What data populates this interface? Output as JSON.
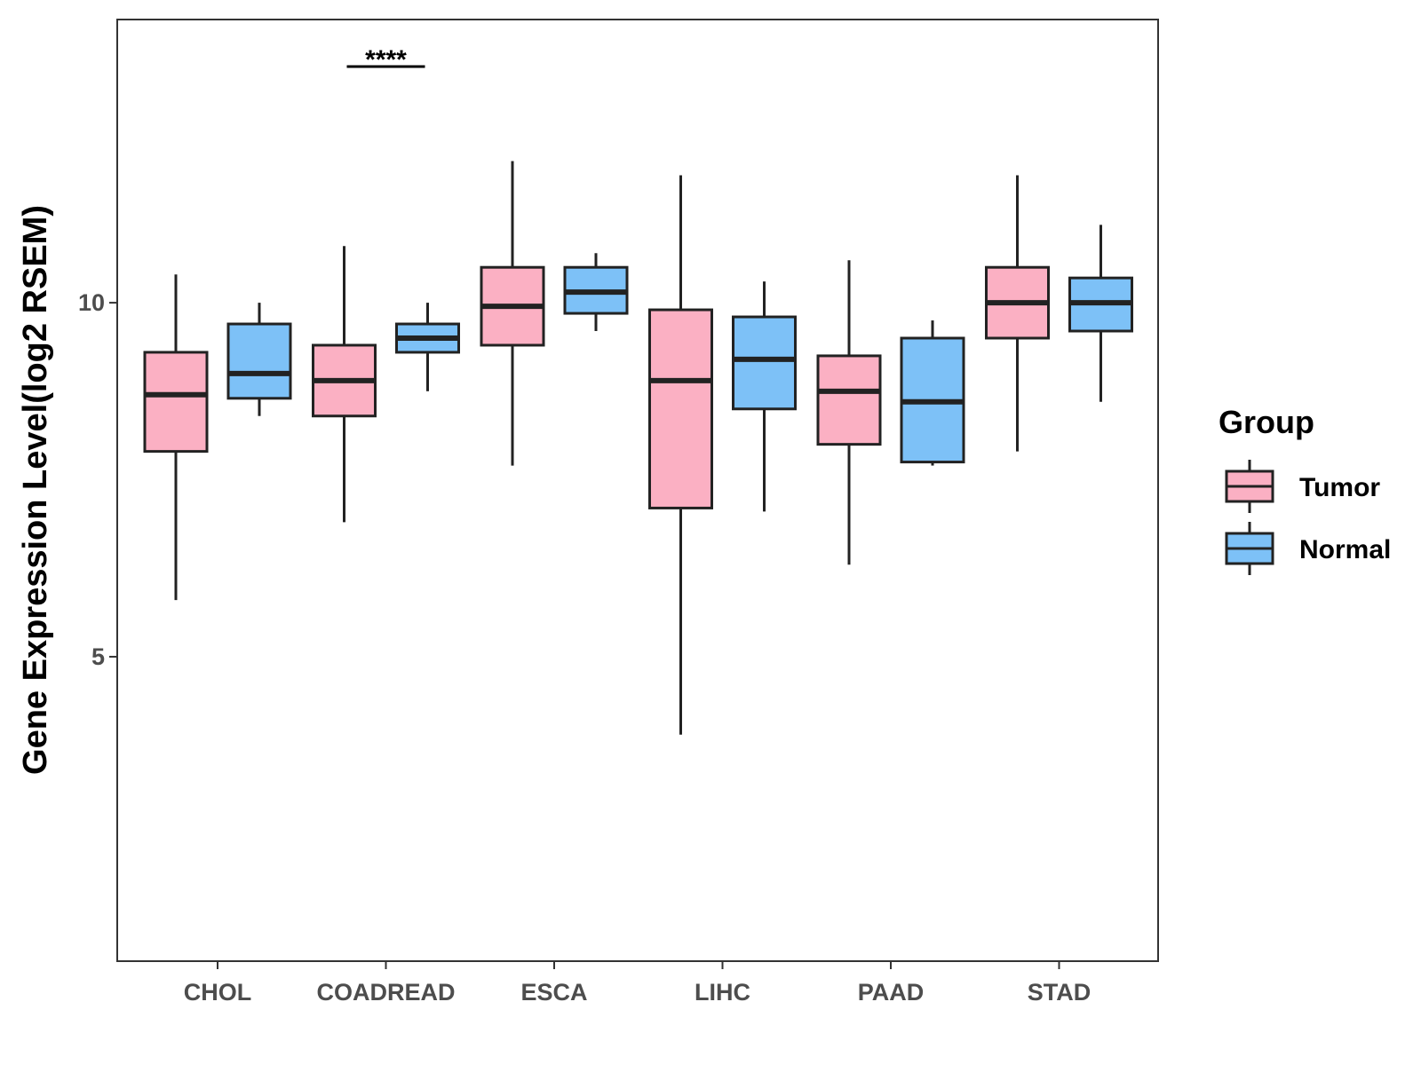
{
  "chart_data": {
    "type": "boxplot",
    "title": "",
    "xlabel": "",
    "ylabel": "Gene Expression Level(log2 RSEM)",
    "ylim": [
      0.7,
      14.0
    ],
    "yticks": [
      5,
      10
    ],
    "categories": [
      "CHOL",
      "COADREAD",
      "ESCA",
      "LIHC",
      "PAAD",
      "STAD"
    ],
    "series": [
      {
        "name": "Tumor",
        "color": "#FBB0C3",
        "boxes": [
          {
            "min": 5.8,
            "q1": 7.9,
            "median": 8.7,
            "q3": 9.3,
            "max": 10.4
          },
          {
            "min": 6.9,
            "q1": 8.4,
            "median": 8.9,
            "q3": 9.4,
            "max": 10.8
          },
          {
            "min": 7.7,
            "q1": 9.4,
            "median": 9.95,
            "q3": 10.5,
            "max": 12.0
          },
          {
            "min": 3.9,
            "q1": 7.1,
            "median": 8.9,
            "q3": 9.9,
            "max": 11.8
          },
          {
            "min": 6.3,
            "q1": 8.0,
            "median": 8.75,
            "q3": 9.25,
            "max": 10.6
          },
          {
            "min": 7.9,
            "q1": 9.5,
            "median": 10.0,
            "q3": 10.5,
            "max": 11.8
          }
        ]
      },
      {
        "name": "Normal",
        "color": "#7DC1F7",
        "boxes": [
          {
            "min": 8.4,
            "q1": 8.65,
            "median": 9.0,
            "q3": 9.7,
            "max": 10.0
          },
          {
            "min": 8.75,
            "q1": 9.3,
            "median": 9.5,
            "q3": 9.7,
            "max": 10.0
          },
          {
            "min": 9.6,
            "q1": 9.85,
            "median": 10.15,
            "q3": 10.5,
            "max": 10.7
          },
          {
            "min": 7.05,
            "q1": 8.5,
            "median": 9.2,
            "q3": 9.8,
            "max": 10.3
          },
          {
            "min": 7.7,
            "q1": 7.75,
            "median": 8.6,
            "q3": 9.5,
            "max": 9.75
          },
          {
            "min": 8.6,
            "q1": 9.6,
            "median": 10.0,
            "q3": 10.35,
            "max": 11.1
          }
        ]
      }
    ],
    "annotations": [
      {
        "category": "COADREAD",
        "text": "****"
      }
    ],
    "legend": {
      "title": "Group",
      "position": "right"
    }
  }
}
